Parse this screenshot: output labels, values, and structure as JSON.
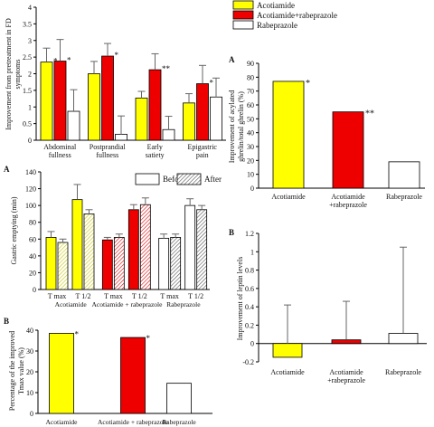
{
  "colors": {
    "acotiamide": "#ffff00",
    "acotiamide_rabeprazole": "#ee0000",
    "rabeprazole": "#ffffff",
    "axis": "#000000",
    "error_bar": "#666666"
  },
  "chart_data": [
    {
      "id": "symptoms",
      "panel_label": "",
      "type": "bar",
      "ylabel": "Improvement from pretreatment in FD symptoms",
      "ylim": [
        0,
        4
      ],
      "yticks": [
        0,
        0.5,
        1,
        1.5,
        2,
        2.5,
        3,
        3.5,
        4
      ],
      "categories": [
        "Abdominal fullness",
        "Postprandial fullness",
        "Early satiety",
        "Epigastric pain"
      ],
      "legend": [
        "Acotiamide",
        "Acotiamide+rabeprazole",
        "Rabeprazole"
      ],
      "legend_position": "top-right",
      "series": [
        {
          "name": "Acotiamide",
          "values": [
            2.35,
            2.0,
            1.27,
            1.12
          ],
          "errors": [
            0.42,
            0.37,
            0.2,
            0.28
          ],
          "marks": [
            "*",
            "*",
            "*",
            ""
          ]
        },
        {
          "name": "Acotiamide+rabeprazole",
          "values": [
            2.38,
            2.53,
            2.12,
            1.7
          ],
          "errors": [
            0.65,
            0.38,
            0.48,
            0.55
          ],
          "marks": [
            "*",
            "*",
            "**",
            "*"
          ]
        },
        {
          "name": "Rabeprazole",
          "values": [
            0.87,
            0.18,
            0.32,
            1.3
          ],
          "errors": [
            0.65,
            0.55,
            0.4,
            0.57
          ],
          "marks": [
            "",
            "",
            "",
            ""
          ]
        }
      ]
    },
    {
      "id": "gastric_emptying",
      "panel_label": "A",
      "type": "bar",
      "ylabel": "Gastric emptying (min)",
      "ylim": [
        0,
        140
      ],
      "yticks": [
        0,
        20,
        40,
        60,
        80,
        100,
        120,
        140
      ],
      "legend": [
        "Before",
        "After"
      ],
      "legend_position": "top-right",
      "tick_labels": [
        "T max",
        "T 1/2",
        "T max",
        "T 1/2",
        "T max",
        "T 1/2"
      ],
      "group_labels": [
        "Acotiamide",
        "Acotiamide + rabeprazole",
        "Rabeprazole"
      ],
      "bars": [
        {
          "group": "Acotiamide",
          "metric": "T max",
          "before": 62,
          "before_err": 7,
          "after": 56,
          "after_err": 4
        },
        {
          "group": "Acotiamide",
          "metric": "T 1/2",
          "before": 107,
          "before_err": 18,
          "after": 90,
          "after_err": 5
        },
        {
          "group": "Acotiamide + rabeprazole",
          "metric": "T max",
          "before": 59,
          "before_err": 3,
          "after": 62,
          "after_err": 4
        },
        {
          "group": "Acotiamide + rabeprazole",
          "metric": "T 1/2",
          "before": 95,
          "before_err": 6,
          "after": 101,
          "after_err": 8
        },
        {
          "group": "Rabeprazole",
          "metric": "T max",
          "before": 61,
          "before_err": 5,
          "after": 62,
          "after_err": 4
        },
        {
          "group": "Rabeprazole",
          "metric": "T 1/2",
          "before": 100,
          "before_err": 8,
          "after": 95,
          "after_err": 5
        }
      ]
    },
    {
      "id": "tmax_percentage",
      "panel_label": "B",
      "type": "bar",
      "ylabel": "Percentage of the improved Tmax value (%)",
      "ylim": [
        0,
        40
      ],
      "yticks": [
        0,
        10,
        20,
        30,
        40
      ],
      "categories": [
        "Acotiamide",
        "Acotiamide + rabeprazole",
        "Rabeprazole"
      ],
      "values": [
        38.5,
        36.5,
        14.5
      ],
      "marks": [
        "*",
        "*",
        ""
      ]
    },
    {
      "id": "ghrelin",
      "panel_label": "A",
      "type": "bar",
      "ylabel": "Improvement of acylated ghrelin/total ghrelin (%)",
      "ylim": [
        0,
        90
      ],
      "yticks": [
        0,
        10,
        20,
        30,
        40,
        50,
        60,
        70,
        80,
        90
      ],
      "categories": [
        "Acotiamide",
        "Acotiamide +rabeprazole",
        "Rabeprazole"
      ],
      "values": [
        77,
        55,
        19
      ],
      "marks": [
        "*",
        "**",
        ""
      ]
    },
    {
      "id": "leptin",
      "panel_label": "B",
      "type": "bar",
      "ylabel": "Improvement of leptin levels",
      "ylim": [
        -0.2,
        1.2
      ],
      "yticks": [
        -0.2,
        0,
        0.2,
        0.4,
        0.6,
        0.8,
        1,
        1.2
      ],
      "categories": [
        "Acotiamide",
        "Acotiamide +rabeprazole",
        "Rabeprazole"
      ],
      "values": [
        -0.15,
        0.04,
        0.11
      ],
      "errors": [
        0.42,
        0.42,
        0.94
      ]
    }
  ]
}
